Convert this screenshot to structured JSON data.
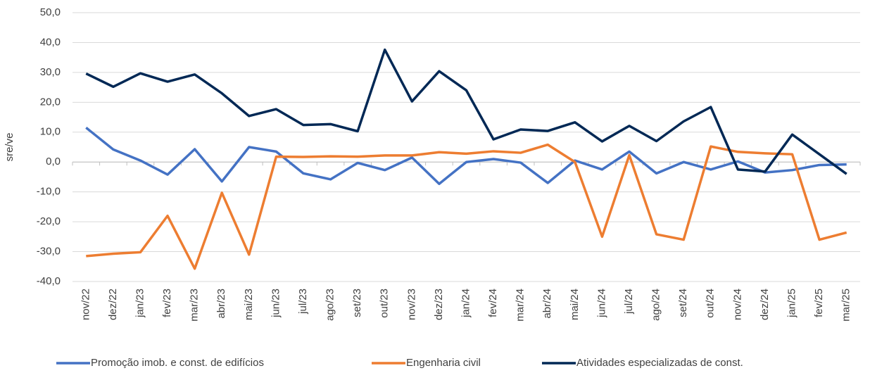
{
  "chart_data": {
    "type": "line",
    "y_label": "sre/ve",
    "categories": [
      "nov/22",
      "dez/22",
      "jan/23",
      "fev/23",
      "mar/23",
      "abr/23",
      "mai/23",
      "jun/23",
      "jul/23",
      "ago/23",
      "set/23",
      "out/23",
      "nov/23",
      "dez/23",
      "jan/24",
      "fev/24",
      "mar/24",
      "abr/24",
      "mai/24",
      "jun/24",
      "jul/24",
      "ago/24",
      "set/24",
      "out/24",
      "nov/24",
      "dez/24",
      "jan/25",
      "fev/25",
      "mar/25"
    ],
    "series": [
      {
        "name": "Promoção imob. e const. de edifícios",
        "color": "#4472c4",
        "values": [
          11.5,
          4.2,
          0.5,
          -4.2,
          4.3,
          -6.5,
          5.0,
          3.5,
          -3.8,
          -5.8,
          -0.3,
          -2.7,
          1.5,
          -7.3,
          0.0,
          1.0,
          -0.2,
          -7.0,
          0.5,
          -2.5,
          3.5,
          -3.8,
          0.0,
          -2.5,
          0.2,
          -3.5,
          -2.7,
          -1.0,
          -0.8
        ]
      },
      {
        "name": "Engenharia civil",
        "color": "#ed7d31",
        "values": [
          -31.5,
          -30.7,
          -30.2,
          -18.0,
          -35.7,
          -10.3,
          -31.0,
          1.8,
          1.7,
          1.9,
          1.8,
          2.2,
          2.2,
          3.3,
          2.8,
          3.6,
          3.1,
          5.8,
          0.0,
          -25.0,
          2.3,
          -24.2,
          -26.0,
          5.2,
          3.4,
          2.9,
          2.6,
          -26.0,
          -23.6
        ]
      },
      {
        "name": "Atividades especializadas de const.",
        "color": "#002855",
        "values": [
          29.6,
          25.2,
          29.7,
          26.9,
          29.3,
          23.0,
          15.4,
          17.7,
          12.4,
          12.7,
          10.3,
          37.6,
          20.3,
          30.4,
          24.0,
          7.6,
          10.9,
          10.4,
          13.3,
          6.9,
          12.1,
          7.0,
          13.6,
          18.4,
          -2.5,
          -3.2,
          9.2,
          2.6,
          -4.0
        ]
      }
    ],
    "ylim": [
      -40,
      50
    ],
    "yticks": [
      {
        "value": -40,
        "label": "-40,0"
      },
      {
        "value": -30,
        "label": "-30,0"
      },
      {
        "value": -20,
        "label": "-20,0"
      },
      {
        "value": -10,
        "label": "-10,0"
      },
      {
        "value": 0,
        "label": "0,0"
      },
      {
        "value": 10,
        "label": "10,0"
      },
      {
        "value": 20,
        "label": "20,0"
      },
      {
        "value": 30,
        "label": "30,0"
      },
      {
        "value": 40,
        "label": "40,0"
      },
      {
        "value": 50,
        "label": "50,0"
      }
    ],
    "grid": true,
    "legend": "bottom"
  }
}
